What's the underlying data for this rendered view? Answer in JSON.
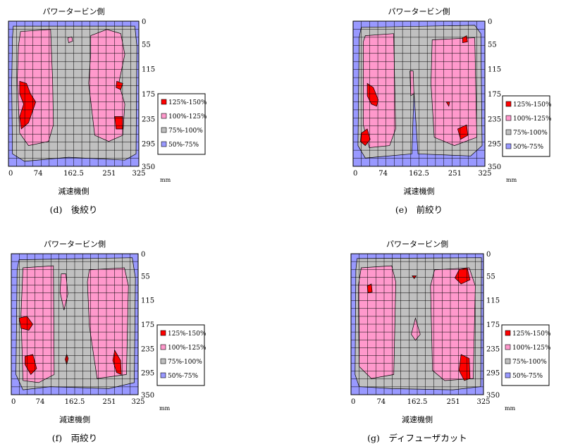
{
  "legend_items": [
    {
      "label": "125%-150%",
      "color": "#ff0000"
    },
    {
      "label": "100%-125%",
      "color": "#ff99cc"
    },
    {
      "label": "75%-100%",
      "color": "#c0c0c0"
    },
    {
      "label": "50%-75%",
      "color": "#9999ff"
    }
  ],
  "chart_data": [
    {
      "type": "heatmap",
      "caption": "(d)　後絞り",
      "top_label": "パワータービン側",
      "bottom_label": "減速機側",
      "x_unit": "mm",
      "x_ticks": [
        "0",
        "74",
        "162.5",
        "251",
        "325"
      ],
      "y_ticks": [
        "0",
        "55",
        "115",
        "175",
        "235",
        "295",
        "350"
      ],
      "xlim": [
        0,
        325
      ],
      "ylim": [
        0,
        350
      ],
      "regions": {
        "gray": [
          [
            [
              12,
              12
            ],
            [
              315,
              12
            ],
            [
              320,
              60
            ],
            [
              318,
              320
            ],
            [
              290,
              335
            ],
            [
              150,
              328
            ],
            [
              40,
              338
            ],
            [
              10,
              320
            ],
            [
              8,
              150
            ],
            [
              10,
              40
            ]
          ]
        ],
        "pink": [
          [
            [
              30,
              25
            ],
            [
              105,
              20
            ],
            [
              110,
              140
            ],
            [
              112,
              250
            ],
            [
              100,
              290
            ],
            [
              50,
              300
            ],
            [
              28,
              270
            ],
            [
              22,
              140
            ],
            [
              25,
              60
            ]
          ],
          [
            [
              205,
              35
            ],
            [
              245,
              20
            ],
            [
              280,
              30
            ],
            [
              290,
              80
            ],
            [
              275,
              150
            ],
            [
              290,
              200
            ],
            [
              285,
              275
            ],
            [
              250,
              290
            ],
            [
              215,
              275
            ],
            [
              200,
              150
            ],
            [
              205,
              80
            ]
          ],
          [
            [
              148,
              40
            ],
            [
              158,
              38
            ],
            [
              160,
              48
            ],
            [
              150,
              52
            ]
          ]
        ],
        "red": [
          [
            [
              28,
              145
            ],
            [
              45,
              150
            ],
            [
              55,
              175
            ],
            [
              68,
              195
            ],
            [
              50,
              245
            ],
            [
              32,
              260
            ],
            [
              28,
              230
            ],
            [
              38,
              200
            ],
            [
              28,
              175
            ]
          ],
          [
            [
              270,
              145
            ],
            [
              285,
              150
            ],
            [
              280,
              165
            ],
            [
              268,
              160
            ]
          ],
          [
            [
              265,
              230
            ],
            [
              285,
              230
            ],
            [
              285,
              260
            ],
            [
              268,
              260
            ]
          ]
        ]
      }
    },
    {
      "type": "heatmap",
      "caption": "(e)　前絞り",
      "top_label": "パワータービン側",
      "bottom_label": "減速機側",
      "x_unit": "mm",
      "x_ticks": [
        "0",
        "74",
        "162.5",
        "251",
        "325"
      ],
      "y_ticks": [
        "0",
        "55",
        "115",
        "175",
        "235",
        "295",
        "350"
      ],
      "xlim": [
        0,
        325
      ],
      "ylim": [
        0,
        350
      ],
      "regions": {
        "gray": [
          [
            [
              20,
              15
            ],
            [
              300,
              10
            ],
            [
              315,
              30
            ],
            [
              318,
              300
            ],
            [
              290,
              325
            ],
            [
              160,
              320
            ],
            [
              150,
              170
            ],
            [
              145,
              320
            ],
            [
              30,
              330
            ],
            [
              12,
              300
            ],
            [
              15,
              40
            ]
          ]
        ],
        "pink": [
          [
            [
              30,
              35
            ],
            [
              100,
              30
            ],
            [
              105,
              260
            ],
            [
              90,
              300
            ],
            [
              40,
              305
            ],
            [
              25,
              250
            ],
            [
              25,
              50
            ]
          ],
          [
            [
              195,
              45
            ],
            [
              300,
              40
            ],
            [
              305,
              280
            ],
            [
              250,
              300
            ],
            [
              200,
              280
            ],
            [
              192,
              150
            ]
          ],
          [
            [
              140,
              120
            ],
            [
              148,
              120
            ],
            [
              150,
              175
            ],
            [
              142,
              180
            ]
          ]
        ],
        "red": [
          [
            [
              35,
              150
            ],
            [
              50,
              160
            ],
            [
              62,
              190
            ],
            [
              58,
              205
            ],
            [
              45,
              200
            ],
            [
              35,
              180
            ]
          ],
          [
            [
              20,
              270
            ],
            [
              35,
              260
            ],
            [
              42,
              285
            ],
            [
              30,
              300
            ],
            [
              18,
              290
            ]
          ],
          [
            [
              258,
              260
            ],
            [
              280,
              250
            ],
            [
              283,
              275
            ],
            [
              265,
              285
            ]
          ],
          [
            [
              270,
              40
            ],
            [
              280,
              35
            ],
            [
              282,
              50
            ],
            [
              270,
              52
            ]
          ],
          [
            [
              230,
              195
            ],
            [
              238,
              195
            ],
            [
              236,
              205
            ]
          ]
        ]
      }
    },
    {
      "type": "heatmap",
      "caption": "(f)　両絞り",
      "top_label": "パワータービン側",
      "bottom_label": "減速機側",
      "x_unit": "mm",
      "x_ticks": [
        "0",
        "74",
        "162.5",
        "251",
        "325"
      ],
      "y_ticks": [
        "0",
        "55",
        "115",
        "175",
        "235",
        "295",
        "350"
      ],
      "xlim": [
        0,
        325
      ],
      "ylim": [
        0,
        350
      ],
      "regions": {
        "gray": [
          [
            [
              20,
              15
            ],
            [
              310,
              10
            ],
            [
              318,
              60
            ],
            [
              315,
              320
            ],
            [
              250,
              335
            ],
            [
              100,
              330
            ],
            [
              30,
              338
            ],
            [
              12,
              300
            ],
            [
              15,
              40
            ]
          ]
        ],
        "pink": [
          [
            [
              30,
              35
            ],
            [
              108,
              30
            ],
            [
              110,
              300
            ],
            [
              70,
              320
            ],
            [
              30,
              315
            ],
            [
              25,
              150
            ]
          ],
          [
            [
              200,
              40
            ],
            [
              290,
              35
            ],
            [
              300,
              80
            ],
            [
              295,
              300
            ],
            [
              220,
              310
            ],
            [
              200,
              180
            ],
            [
              195,
              70
            ]
          ],
          [
            [
              128,
              50
            ],
            [
              140,
              50
            ],
            [
              145,
              100
            ],
            [
              135,
              140
            ],
            [
              125,
              95
            ]
          ]
        ],
        "red": [
          [
            [
              20,
              160
            ],
            [
              40,
              155
            ],
            [
              55,
              175
            ],
            [
              45,
              190
            ],
            [
              25,
              185
            ]
          ],
          [
            [
              35,
              255
            ],
            [
              55,
              250
            ],
            [
              65,
              285
            ],
            [
              50,
              300
            ],
            [
              35,
              275
            ]
          ],
          [
            [
              265,
              240
            ],
            [
              280,
              265
            ],
            [
              282,
              300
            ],
            [
              270,
              295
            ],
            [
              260,
              265
            ]
          ],
          [
            [
              142,
              250
            ],
            [
              146,
              260
            ],
            [
              142,
              275
            ],
            [
              138,
              262
            ]
          ]
        ]
      }
    },
    {
      "type": "heatmap",
      "caption": "(g)　ディフューザカット",
      "top_label": "パワータービン側",
      "bottom_label": "減速機側",
      "x_unit": "mm",
      "x_ticks": [
        "0",
        "74",
        "162.5",
        "251",
        "325"
      ],
      "y_ticks": [
        "0",
        "55",
        "115",
        "175",
        "235",
        "295",
        "350"
      ],
      "xlim": [
        0,
        325
      ],
      "ylim": [
        0,
        350
      ],
      "regions": {
        "gray": [
          [
            [
              15,
              12
            ],
            [
              320,
              10
            ],
            [
              318,
              330
            ],
            [
              250,
              338
            ],
            [
              100,
              335
            ],
            [
              20,
              330
            ],
            [
              10,
              300
            ],
            [
              12,
              40
            ]
          ]
        ],
        "pink": [
          [
            [
              25,
              35
            ],
            [
              100,
              30
            ],
            [
              110,
              70
            ],
            [
              105,
              300
            ],
            [
              50,
              310
            ],
            [
              20,
              280
            ],
            [
              18,
              80
            ]
          ],
          [
            [
              205,
              40
            ],
            [
              290,
              35
            ],
            [
              305,
              80
            ],
            [
              300,
              310
            ],
            [
              230,
              315
            ],
            [
              200,
              290
            ],
            [
              195,
              80
            ]
          ],
          [
            [
              148,
              200
            ],
            [
              158,
              160
            ],
            [
              170,
              200
            ],
            [
              158,
              215
            ]
          ]
        ],
        "red": [
          [
            [
              265,
              40
            ],
            [
              285,
              35
            ],
            [
              292,
              65
            ],
            [
              270,
              75
            ],
            [
              255,
              60
            ]
          ],
          [
            [
              270,
              250
            ],
            [
              290,
              260
            ],
            [
              292,
              310
            ],
            [
              278,
              315
            ],
            [
              265,
              290
            ]
          ],
          [
            [
              40,
              80
            ],
            [
              50,
              75
            ],
            [
              52,
              95
            ],
            [
              42,
              97
            ]
          ],
          [
            [
              150,
              55
            ],
            [
              160,
              55
            ],
            [
              155,
              62
            ]
          ]
        ]
      }
    }
  ]
}
